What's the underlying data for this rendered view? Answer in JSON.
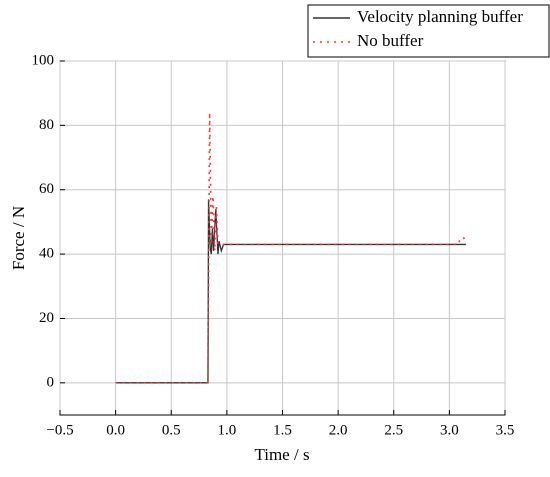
{
  "chart_data": {
    "type": "line",
    "xlabel": "Time / s",
    "ylabel": "Force / N",
    "xlim": [
      -0.5,
      3.5
    ],
    "ylim": [
      -10,
      100
    ],
    "xticks": [
      {
        "value": -0.5,
        "label": "−0.5"
      },
      {
        "value": 0,
        "label": "0.0"
      },
      0.5,
      {
        "value": 1,
        "label": "1.0"
      },
      1.5,
      {
        "value": 2,
        "label": "2.0"
      },
      2.5,
      {
        "value": 3,
        "label": "3.0"
      },
      3.5
    ],
    "yticks": [
      0,
      20,
      40,
      60,
      80,
      100
    ],
    "grid": true,
    "series": [
      {
        "name": "Velocity planning buffer",
        "color": "#333333",
        "style": "solid",
        "x": [
          0,
          0.83,
          0.835,
          0.85,
          0.86,
          0.87,
          0.88,
          0.9,
          0.92,
          0.93,
          0.95,
          0.97,
          3.15
        ],
        "values": [
          0,
          0,
          57,
          42,
          40,
          48,
          41,
          54,
          40,
          44,
          41,
          43,
          43
        ]
      },
      {
        "name": "No buffer",
        "color": "#ff3333",
        "style": "dotted",
        "x": [
          0,
          0.83,
          0.845,
          0.86,
          0.875,
          0.89,
          0.905,
          0.92,
          0.95,
          3.08,
          3.1,
          3.13,
          3.15
        ],
        "values": [
          0,
          0,
          84,
          43,
          58,
          41,
          55,
          43,
          43,
          43,
          45,
          45,
          44
        ]
      }
    ],
    "legend": "top-right-outside"
  }
}
